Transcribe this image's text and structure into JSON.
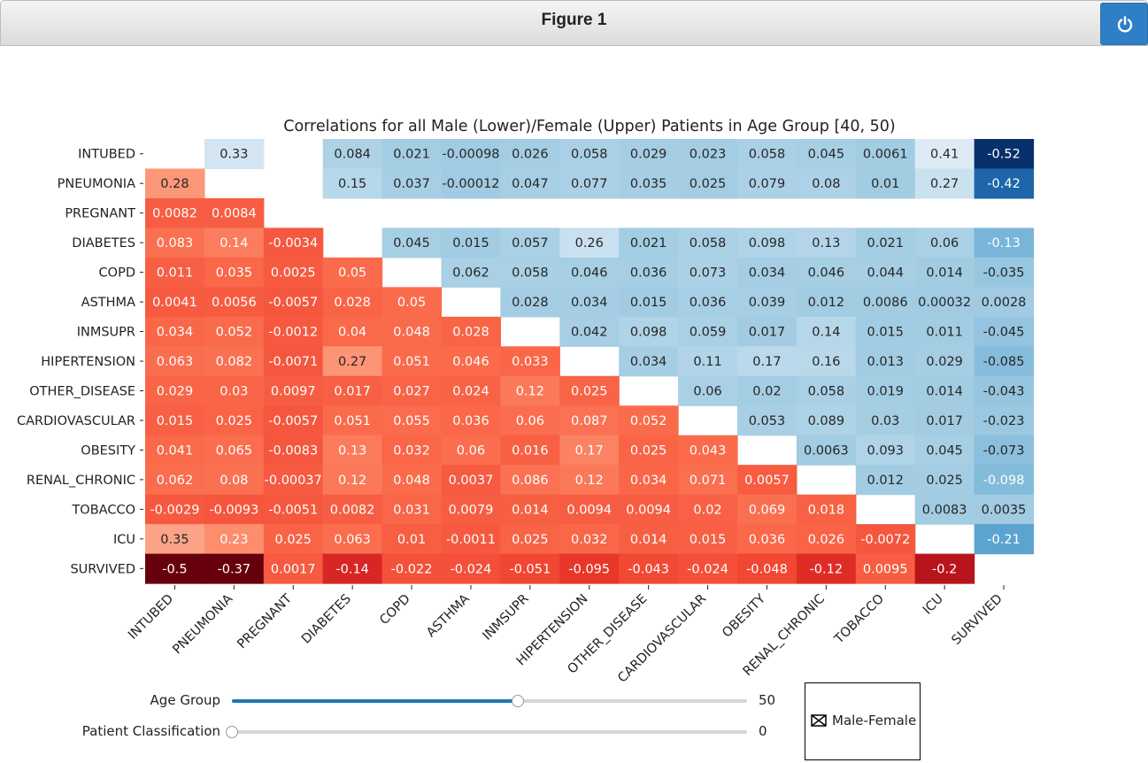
{
  "window": {
    "title": "Figure 1",
    "power_icon": "power-icon"
  },
  "chart_data": {
    "type": "heatmap",
    "title": "Correlations for all Male (Lower)/Female (Upper) Patients in Age Group [40, 50)",
    "labels": [
      "INTUBED",
      "PNEUMONIA",
      "PREGNANT",
      "DIABETES",
      "COPD",
      "ASTHMA",
      "INMSUPR",
      "HIPERTENSION",
      "OTHER_DISEASE",
      "CARDIOVASCULAR",
      "OBESITY",
      "RENAL_CHRONIC",
      "TOBACCO",
      "ICU",
      "SURVIVED"
    ],
    "upper_colormap": "Blues (negative values darker)",
    "lower_colormap": "Reds (negative values darker)",
    "cells": [
      [
        null,
        "0.33",
        null,
        "0.084",
        "0.021",
        "-0.00098",
        "0.026",
        "0.058",
        "0.029",
        "0.023",
        "0.058",
        "0.045",
        "0.0061",
        "0.41",
        "-0.52"
      ],
      [
        "0.28",
        null,
        null,
        "0.15",
        "0.037",
        "-0.00012",
        "0.047",
        "0.077",
        "0.035",
        "0.025",
        "0.079",
        "0.08",
        "0.01",
        "0.27",
        "-0.42"
      ],
      [
        "0.0082",
        "0.0084",
        null,
        null,
        null,
        null,
        null,
        null,
        null,
        null,
        null,
        null,
        null,
        null,
        null
      ],
      [
        "0.083",
        "0.14",
        "-0.0034",
        null,
        "0.045",
        "0.015",
        "0.057",
        "0.26",
        "0.021",
        "0.058",
        "0.098",
        "0.13",
        "0.021",
        "0.06",
        "-0.13"
      ],
      [
        "0.011",
        "0.035",
        "0.0025",
        "0.05",
        null,
        "0.062",
        "0.058",
        "0.046",
        "0.036",
        "0.073",
        "0.034",
        "0.046",
        "0.044",
        "0.014",
        "-0.035"
      ],
      [
        "0.0041",
        "0.0056",
        "-0.0057",
        "0.028",
        "0.05",
        null,
        "0.028",
        "0.034",
        "0.015",
        "0.036",
        "0.039",
        "0.012",
        "0.0086",
        "0.00032",
        "0.0028"
      ],
      [
        "0.034",
        "0.052",
        "-0.0012",
        "0.04",
        "0.048",
        "0.028",
        null,
        "0.042",
        "0.098",
        "0.059",
        "0.017",
        "0.14",
        "0.015",
        "0.011",
        "-0.045"
      ],
      [
        "0.063",
        "0.082",
        "-0.0071",
        "0.27",
        "0.051",
        "0.046",
        "0.033",
        null,
        "0.034",
        "0.11",
        "0.17",
        "0.16",
        "0.013",
        "0.029",
        "-0.085"
      ],
      [
        "0.029",
        "0.03",
        "0.0097",
        "0.017",
        "0.027",
        "0.024",
        "0.12",
        "0.025",
        null,
        "0.06",
        "0.02",
        "0.058",
        "0.019",
        "0.014",
        "-0.043"
      ],
      [
        "0.015",
        "0.025",
        "-0.0057",
        "0.051",
        "0.055",
        "0.036",
        "0.06",
        "0.087",
        "0.052",
        null,
        "0.053",
        "0.089",
        "0.03",
        "0.017",
        "-0.023"
      ],
      [
        "0.041",
        "0.065",
        "-0.0083",
        "0.13",
        "0.032",
        "0.06",
        "0.016",
        "0.17",
        "0.025",
        "0.043",
        null,
        "0.0063",
        "0.093",
        "0.045",
        "-0.073"
      ],
      [
        "0.062",
        "0.08",
        "-0.00037",
        "0.12",
        "0.048",
        "0.0037",
        "0.086",
        "0.12",
        "0.034",
        "0.071",
        "0.0057",
        null,
        "0.012",
        "0.025",
        "-0.098"
      ],
      [
        "-0.0029",
        "-0.0093",
        "-0.0051",
        "0.0082",
        "0.031",
        "0.0079",
        "0.014",
        "0.0094",
        "0.0094",
        "0.02",
        "0.069",
        "0.018",
        null,
        "0.0083",
        "0.0035"
      ],
      [
        "0.35",
        "0.23",
        "0.025",
        "0.063",
        "0.01",
        "-0.0011",
        "0.025",
        "0.032",
        "0.014",
        "0.015",
        "0.036",
        "0.026",
        "-0.0072",
        null,
        "-0.21"
      ],
      [
        "-0.5",
        "-0.37",
        "0.0017",
        "-0.14",
        "-0.022",
        "-0.024",
        "-0.051",
        "-0.095",
        "-0.043",
        "-0.024",
        "-0.048",
        "-0.12",
        "0.0095",
        "-0.2",
        null
      ]
    ]
  },
  "controls": {
    "age_group": {
      "label": "Age Group",
      "value": "50",
      "fraction": 0.555
    },
    "patient_classification": {
      "label": "Patient Classification",
      "value": "0",
      "fraction": 0.0
    },
    "checkbox": {
      "label": "Male-Female",
      "checked": true
    }
  }
}
